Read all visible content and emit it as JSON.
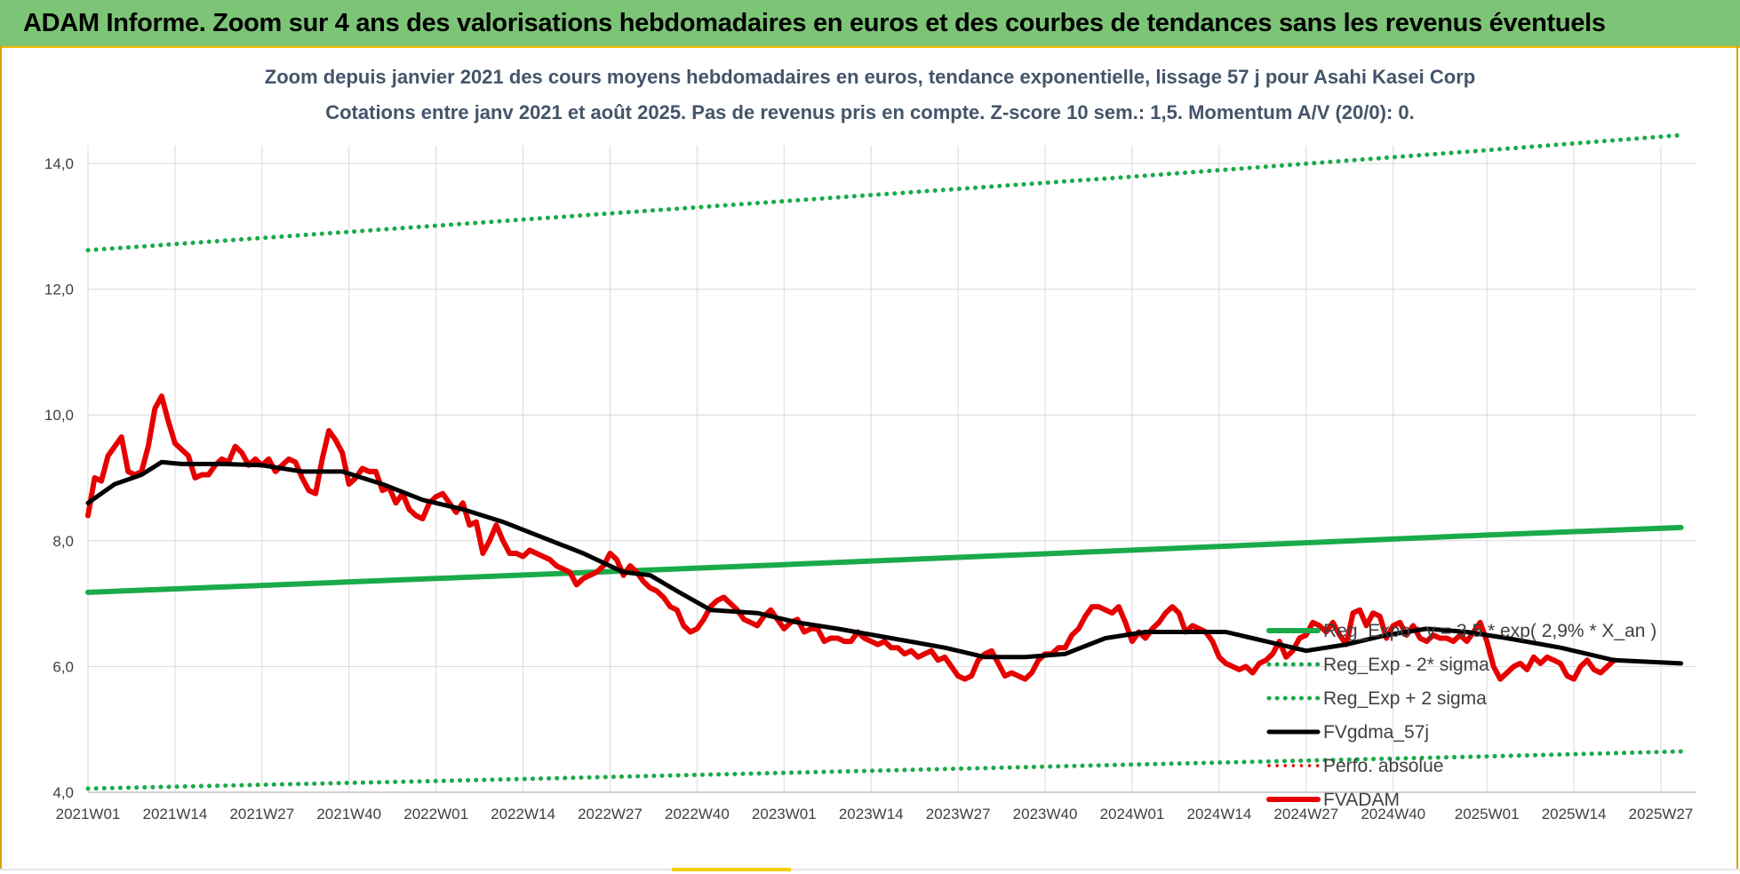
{
  "header": {
    "title": "ADAM Informe. Zoom sur 4 ans des valorisations hebdomadaires en euros et des courbes de tendances sans les revenus éventuels"
  },
  "chart_data": {
    "type": "line",
    "title": "Zoom depuis janvier 2021 des cours moyens hebdomadaires en euros, tendance exponentielle, lissage 57 j pour Asahi Kasei Corp",
    "subtitle": "Cotations entre janv 2021 et août 2025.  Pas de revenus pris en compte. Z-score 10 sem.: 1,5. Momentum A/V (20/0): 0.",
    "xlabel": "",
    "ylabel": "",
    "ylim": [
      4.0,
      14.0
    ],
    "yticks": [
      "4,0",
      "6,0",
      "8,0",
      "10,0",
      "12,0",
      "14,0"
    ],
    "ytick_values": [
      4,
      6,
      8,
      10,
      12,
      14
    ],
    "xlim_weeks": [
      0,
      235
    ],
    "xticks": [
      {
        "label": "2021W01",
        "week": 0
      },
      {
        "label": "2021W14",
        "week": 13
      },
      {
        "label": "2021W27",
        "week": 26
      },
      {
        "label": "2021W40",
        "week": 39
      },
      {
        "label": "2022W01",
        "week": 52
      },
      {
        "label": "2022W14",
        "week": 65
      },
      {
        "label": "2022W27",
        "week": 78
      },
      {
        "label": "2022W40",
        "week": 91
      },
      {
        "label": "2023W01",
        "week": 104
      },
      {
        "label": "2023W14",
        "week": 117
      },
      {
        "label": "2023W27",
        "week": 130
      },
      {
        "label": "2023W40",
        "week": 143
      },
      {
        "label": "2024W01",
        "week": 156
      },
      {
        "label": "2024W14",
        "week": 169
      },
      {
        "label": "2024W27",
        "week": 182
      },
      {
        "label": "2024W40",
        "week": 195
      },
      {
        "label": "2025W01",
        "week": 209
      },
      {
        "label": "2025W14",
        "week": 222
      },
      {
        "label": "2025W27",
        "week": 235
      }
    ],
    "grid": true,
    "legend_position": "right",
    "series": [
      {
        "name": "Reg_Expo : y = 3,5 * exp( 2,9% *  X_an )",
        "color": "#1aaa4a",
        "style": "solid",
        "points": [
          [
            0,
            7.18
          ],
          [
            52,
            7.4
          ],
          [
            104,
            7.62
          ],
          [
            156,
            7.85
          ],
          [
            209,
            8.09
          ],
          [
            238,
            8.21
          ]
        ]
      },
      {
        "name": "Reg_Exp - 2* sigma",
        "color": "#1aaa4a",
        "style": "dotted",
        "points": [
          [
            0,
            4.06
          ],
          [
            52,
            4.18
          ],
          [
            104,
            4.31
          ],
          [
            156,
            4.44
          ],
          [
            209,
            4.57
          ],
          [
            238,
            4.65
          ]
        ]
      },
      {
        "name": "Reg_Exp + 2 sigma",
        "color": "#1aaa4a",
        "style": "dotted",
        "points": [
          [
            0,
            12.62
          ],
          [
            52,
            13.01
          ],
          [
            104,
            13.4
          ],
          [
            156,
            13.79
          ],
          [
            209,
            14.21
          ],
          [
            238,
            14.45
          ]
        ]
      },
      {
        "name": "FVgdma_57j",
        "color": "#000000",
        "style": "solid",
        "points": [
          [
            0,
            8.6
          ],
          [
            4,
            8.9
          ],
          [
            8,
            9.05
          ],
          [
            11,
            9.25
          ],
          [
            14,
            9.22
          ],
          [
            20,
            9.22
          ],
          [
            26,
            9.2
          ],
          [
            32,
            9.1
          ],
          [
            38,
            9.1
          ],
          [
            44,
            8.9
          ],
          [
            50,
            8.65
          ],
          [
            56,
            8.5
          ],
          [
            62,
            8.3
          ],
          [
            68,
            8.05
          ],
          [
            74,
            7.8
          ],
          [
            80,
            7.5
          ],
          [
            84,
            7.45
          ],
          [
            88,
            7.2
          ],
          [
            93,
            6.9
          ],
          [
            100,
            6.85
          ],
          [
            106,
            6.7
          ],
          [
            112,
            6.6
          ],
          [
            120,
            6.45
          ],
          [
            128,
            6.3
          ],
          [
            134,
            6.15
          ],
          [
            140,
            6.15
          ],
          [
            146,
            6.2
          ],
          [
            152,
            6.45
          ],
          [
            158,
            6.55
          ],
          [
            164,
            6.55
          ],
          [
            170,
            6.55
          ],
          [
            176,
            6.4
          ],
          [
            182,
            6.25
          ],
          [
            188,
            6.35
          ],
          [
            194,
            6.5
          ],
          [
            200,
            6.6
          ],
          [
            206,
            6.55
          ],
          [
            212,
            6.45
          ],
          [
            220,
            6.3
          ],
          [
            228,
            6.1
          ],
          [
            238,
            6.05
          ]
        ]
      },
      {
        "name": "Perfo. absolue",
        "color": "#e60000",
        "style": "dotted",
        "points": []
      },
      {
        "name": "FVADAM",
        "color": "#e60000",
        "style": "solid",
        "points": [
          [
            0,
            8.4
          ],
          [
            1,
            9.0
          ],
          [
            2,
            8.95
          ],
          [
            3,
            9.35
          ],
          [
            4,
            9.5
          ],
          [
            5,
            9.65
          ],
          [
            6,
            9.1
          ],
          [
            7,
            9.05
          ],
          [
            8,
            9.1
          ],
          [
            9,
            9.5
          ],
          [
            10,
            10.1
          ],
          [
            11,
            10.3
          ],
          [
            12,
            9.9
          ],
          [
            13,
            9.55
          ],
          [
            14,
            9.45
          ],
          [
            15,
            9.35
          ],
          [
            16,
            9.0
          ],
          [
            17,
            9.05
          ],
          [
            18,
            9.05
          ],
          [
            19,
            9.2
          ],
          [
            20,
            9.3
          ],
          [
            21,
            9.25
          ],
          [
            22,
            9.5
          ],
          [
            23,
            9.4
          ],
          [
            24,
            9.2
          ],
          [
            25,
            9.3
          ],
          [
            26,
            9.2
          ],
          [
            27,
            9.3
          ],
          [
            28,
            9.1
          ],
          [
            29,
            9.2
          ],
          [
            30,
            9.3
          ],
          [
            31,
            9.25
          ],
          [
            32,
            9.0
          ],
          [
            33,
            8.8
          ],
          [
            34,
            8.75
          ],
          [
            35,
            9.3
          ],
          [
            36,
            9.75
          ],
          [
            37,
            9.6
          ],
          [
            38,
            9.4
          ],
          [
            39,
            8.9
          ],
          [
            40,
            9.0
          ],
          [
            41,
            9.15
          ],
          [
            42,
            9.1
          ],
          [
            43,
            9.1
          ],
          [
            44,
            8.8
          ],
          [
            45,
            8.85
          ],
          [
            46,
            8.6
          ],
          [
            47,
            8.75
          ],
          [
            48,
            8.5
          ],
          [
            49,
            8.4
          ],
          [
            50,
            8.35
          ],
          [
            51,
            8.6
          ],
          [
            52,
            8.7
          ],
          [
            53,
            8.75
          ],
          [
            54,
            8.6
          ],
          [
            55,
            8.45
          ],
          [
            56,
            8.6
          ],
          [
            57,
            8.25
          ],
          [
            58,
            8.3
          ],
          [
            59,
            7.8
          ],
          [
            60,
            8.0
          ],
          [
            61,
            8.25
          ],
          [
            62,
            8.0
          ],
          [
            63,
            7.8
          ],
          [
            64,
            7.8
          ],
          [
            65,
            7.75
          ],
          [
            66,
            7.85
          ],
          [
            67,
            7.8
          ],
          [
            68,
            7.75
          ],
          [
            69,
            7.7
          ],
          [
            70,
            7.6
          ],
          [
            71,
            7.55
          ],
          [
            72,
            7.5
          ],
          [
            73,
            7.3
          ],
          [
            74,
            7.4
          ],
          [
            75,
            7.45
          ],
          [
            76,
            7.5
          ],
          [
            77,
            7.6
          ],
          [
            78,
            7.8
          ],
          [
            79,
            7.7
          ],
          [
            80,
            7.45
          ],
          [
            81,
            7.6
          ],
          [
            82,
            7.5
          ],
          [
            83,
            7.35
          ],
          [
            84,
            7.25
          ],
          [
            85,
            7.2
          ],
          [
            86,
            7.1
          ],
          [
            87,
            6.95
          ],
          [
            88,
            6.9
          ],
          [
            89,
            6.65
          ],
          [
            90,
            6.55
          ],
          [
            91,
            6.6
          ],
          [
            92,
            6.75
          ],
          [
            93,
            6.95
          ],
          [
            94,
            7.05
          ],
          [
            95,
            7.1
          ],
          [
            96,
            7.0
          ],
          [
            97,
            6.9
          ],
          [
            98,
            6.75
          ],
          [
            99,
            6.7
          ],
          [
            100,
            6.65
          ],
          [
            101,
            6.8
          ],
          [
            102,
            6.9
          ],
          [
            103,
            6.75
          ],
          [
            104,
            6.6
          ],
          [
            105,
            6.7
          ],
          [
            106,
            6.75
          ],
          [
            107,
            6.55
          ],
          [
            108,
            6.6
          ],
          [
            109,
            6.6
          ],
          [
            110,
            6.4
          ],
          [
            111,
            6.45
          ],
          [
            112,
            6.45
          ],
          [
            113,
            6.4
          ],
          [
            114,
            6.4
          ],
          [
            115,
            6.55
          ],
          [
            116,
            6.45
          ],
          [
            117,
            6.4
          ],
          [
            118,
            6.35
          ],
          [
            119,
            6.4
          ],
          [
            120,
            6.3
          ],
          [
            121,
            6.3
          ],
          [
            122,
            6.2
          ],
          [
            123,
            6.25
          ],
          [
            124,
            6.15
          ],
          [
            125,
            6.2
          ],
          [
            126,
            6.25
          ],
          [
            127,
            6.1
          ],
          [
            128,
            6.15
          ],
          [
            129,
            6.0
          ],
          [
            130,
            5.85
          ],
          [
            131,
            5.8
          ],
          [
            132,
            5.85
          ],
          [
            133,
            6.1
          ],
          [
            134,
            6.2
          ],
          [
            135,
            6.25
          ],
          [
            136,
            6.05
          ],
          [
            137,
            5.85
          ],
          [
            138,
            5.9
          ],
          [
            139,
            5.85
          ],
          [
            140,
            5.8
          ],
          [
            141,
            5.9
          ],
          [
            142,
            6.1
          ],
          [
            143,
            6.2
          ],
          [
            144,
            6.2
          ],
          [
            145,
            6.3
          ],
          [
            146,
            6.3
          ],
          [
            147,
            6.5
          ],
          [
            148,
            6.6
          ],
          [
            149,
            6.8
          ],
          [
            150,
            6.95
          ],
          [
            151,
            6.95
          ],
          [
            152,
            6.9
          ],
          [
            153,
            6.85
          ],
          [
            154,
            6.95
          ],
          [
            155,
            6.7
          ],
          [
            156,
            6.4
          ],
          [
            157,
            6.55
          ],
          [
            158,
            6.45
          ],
          [
            159,
            6.6
          ],
          [
            160,
            6.7
          ],
          [
            161,
            6.85
          ],
          [
            162,
            6.95
          ],
          [
            163,
            6.85
          ],
          [
            164,
            6.55
          ],
          [
            165,
            6.65
          ],
          [
            166,
            6.6
          ],
          [
            167,
            6.55
          ],
          [
            168,
            6.4
          ],
          [
            169,
            6.15
          ],
          [
            170,
            6.05
          ],
          [
            171,
            6.0
          ],
          [
            172,
            5.95
          ],
          [
            173,
            6.0
          ],
          [
            174,
            5.9
          ],
          [
            175,
            6.05
          ],
          [
            176,
            6.1
          ],
          [
            177,
            6.2
          ],
          [
            178,
            6.4
          ],
          [
            179,
            6.15
          ],
          [
            180,
            6.25
          ],
          [
            181,
            6.45
          ],
          [
            182,
            6.5
          ],
          [
            183,
            6.7
          ],
          [
            184,
            6.65
          ],
          [
            185,
            6.55
          ],
          [
            186,
            6.7
          ],
          [
            187,
            6.5
          ],
          [
            188,
            6.35
          ],
          [
            189,
            6.85
          ],
          [
            190,
            6.9
          ],
          [
            191,
            6.65
          ],
          [
            192,
            6.85
          ],
          [
            193,
            6.8
          ],
          [
            194,
            6.45
          ],
          [
            195,
            6.65
          ],
          [
            196,
            6.7
          ],
          [
            197,
            6.5
          ],
          [
            198,
            6.65
          ],
          [
            199,
            6.45
          ],
          [
            200,
            6.4
          ],
          [
            201,
            6.5
          ],
          [
            202,
            6.45
          ],
          [
            203,
            6.45
          ],
          [
            204,
            6.4
          ],
          [
            205,
            6.5
          ],
          [
            206,
            6.4
          ],
          [
            207,
            6.55
          ],
          [
            208,
            6.7
          ],
          [
            209,
            6.4
          ],
          [
            210,
            6.0
          ],
          [
            211,
            5.8
          ],
          [
            212,
            5.9
          ],
          [
            213,
            6.0
          ],
          [
            214,
            6.05
          ],
          [
            215,
            5.95
          ],
          [
            216,
            6.15
          ],
          [
            217,
            6.05
          ],
          [
            218,
            6.15
          ],
          [
            219,
            6.1
          ],
          [
            220,
            6.05
          ],
          [
            221,
            5.85
          ],
          [
            222,
            5.8
          ],
          [
            223,
            6.0
          ],
          [
            224,
            6.1
          ],
          [
            225,
            5.95
          ],
          [
            226,
            5.9
          ],
          [
            227,
            6.0
          ],
          [
            228,
            6.1
          ]
        ]
      }
    ]
  }
}
